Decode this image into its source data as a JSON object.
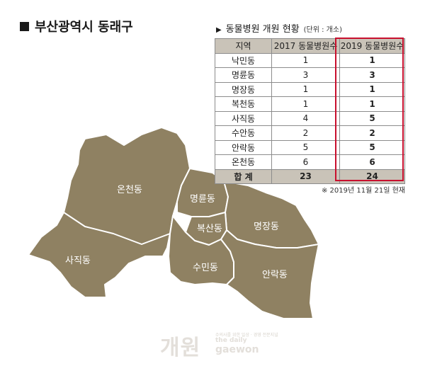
{
  "region_title": "부산광역시 동래구",
  "table_title": "동물병원 개원 현황",
  "table_unit": "(단위 : 개소)",
  "table": {
    "headers": [
      "지역",
      "2017 동물병원수",
      "2019 동물병원수"
    ],
    "rows": [
      {
        "name": "낙민동",
        "v2017": "1",
        "v2019": "1"
      },
      {
        "name": "명륜동",
        "v2017": "3",
        "v2019": "3"
      },
      {
        "name": "명장동",
        "v2017": "1",
        "v2019": "1"
      },
      {
        "name": "복천동",
        "v2017": "1",
        "v2019": "1"
      },
      {
        "name": "사직동",
        "v2017": "4",
        "v2019": "5"
      },
      {
        "name": "수안동",
        "v2017": "2",
        "v2019": "2"
      },
      {
        "name": "안락동",
        "v2017": "5",
        "v2019": "5"
      },
      {
        "name": "온천동",
        "v2017": "6",
        "v2019": "6"
      }
    ],
    "total": {
      "name": "합 계",
      "v2017": "23",
      "v2019": "24"
    }
  },
  "note": "※ 2019년 11월 21일 현재",
  "map_labels": {
    "oncheon": "온천동",
    "sajik": "사직동",
    "myeongnyun": "명륜동",
    "bokcheon": "복산동",
    "myeongjang": "명장동",
    "sumin": "수민동",
    "anrak": "안락동"
  },
  "logo": {
    "korean": "개원",
    "tagline": "수의사를 위한 일상 · 경영 전문지널",
    "eng_line1": "the daily",
    "eng_line2": "gaewon"
  },
  "colors": {
    "map_fill": "#8f8162",
    "map_stroke": "#ffffff",
    "header_bg": "#c9c3b8",
    "highlight": "#c8102e"
  }
}
